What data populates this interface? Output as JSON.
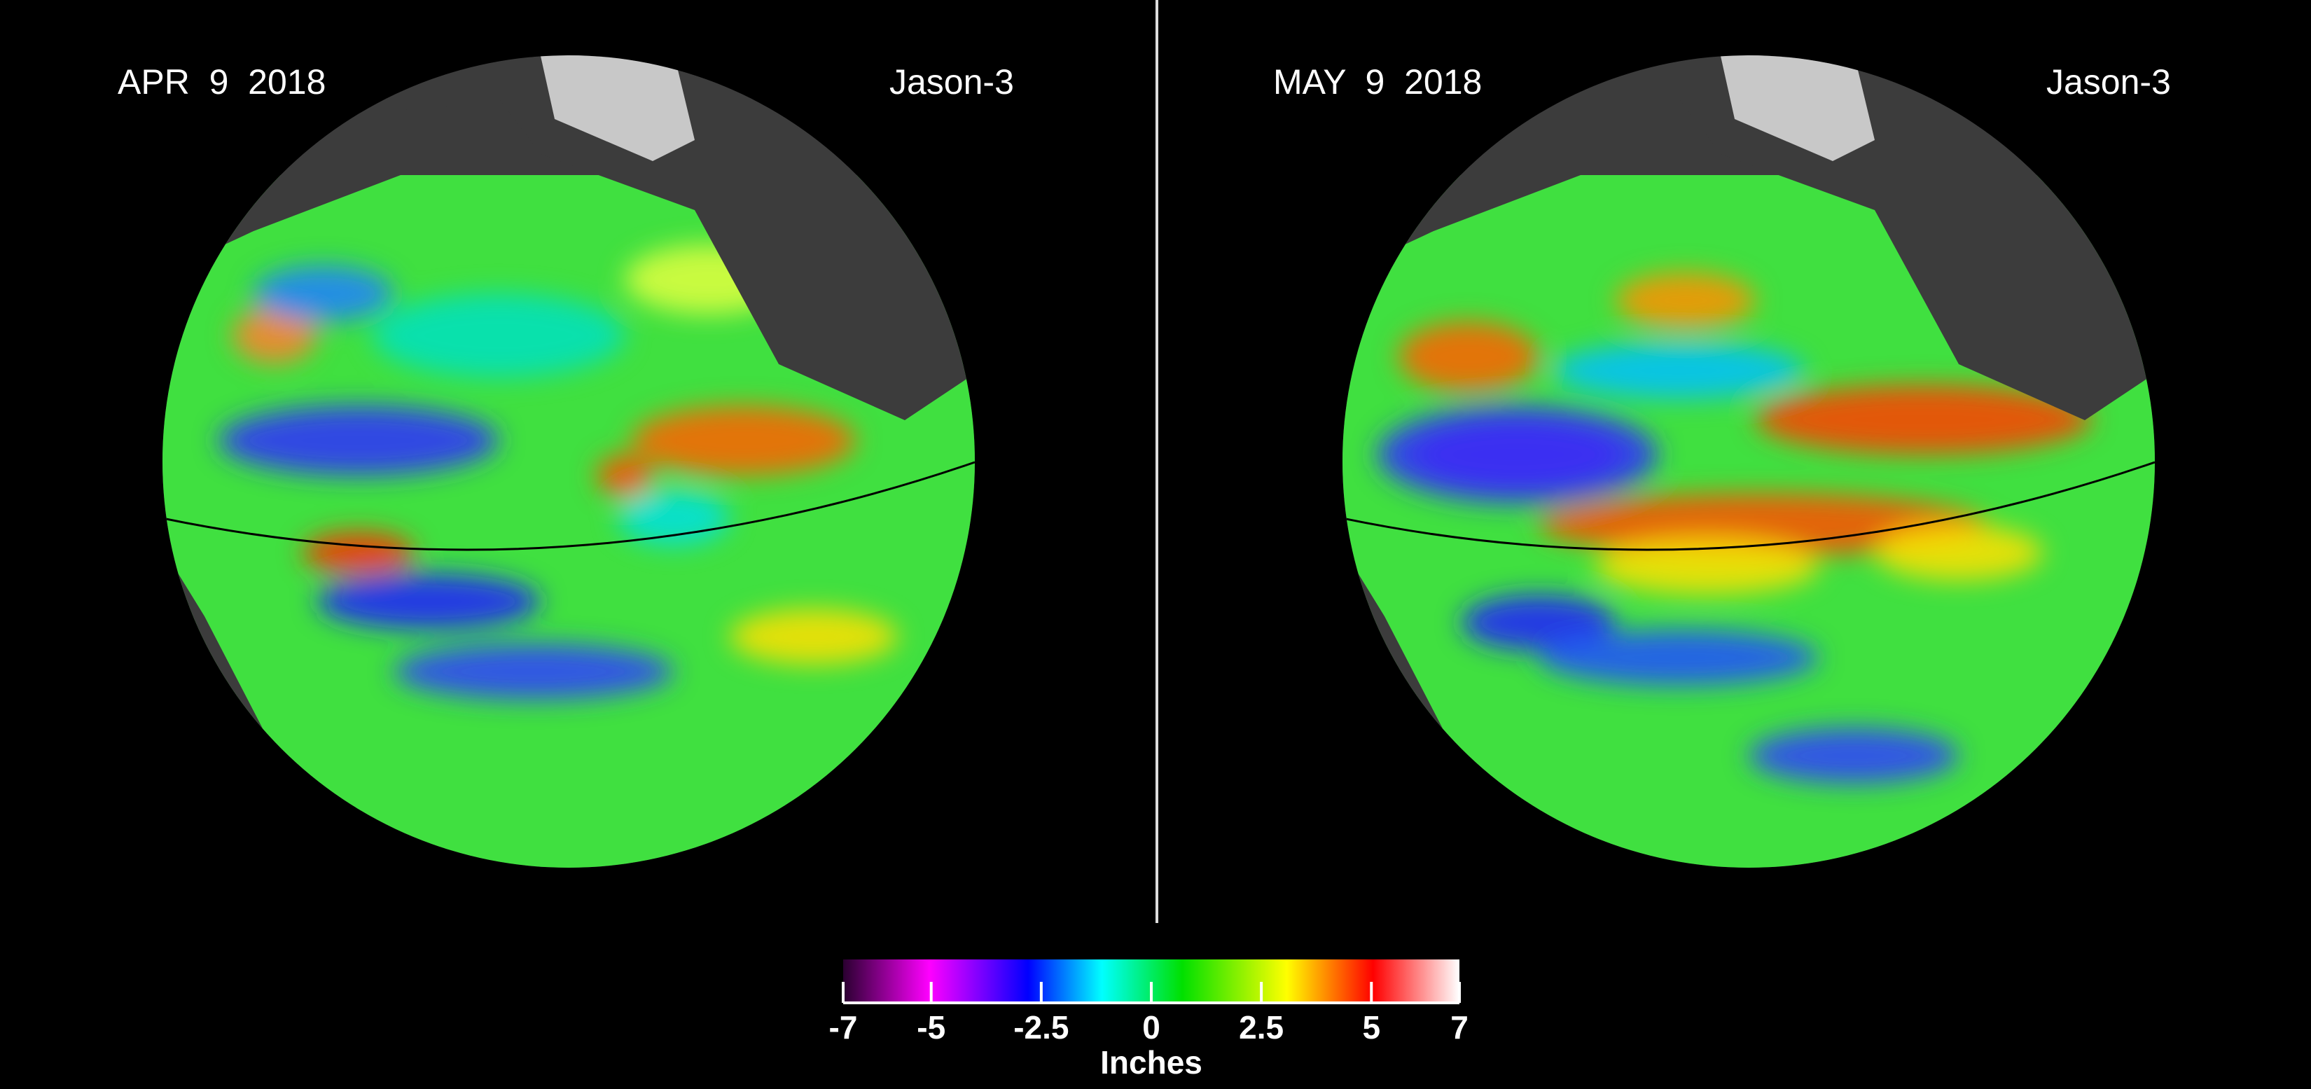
{
  "panels": [
    {
      "date": "APR  9  2018",
      "satellite": "Jason-3"
    },
    {
      "date": "MAY  9  2018",
      "satellite": "Jason-3"
    }
  ],
  "colorbar": {
    "ticks": [
      "-7",
      "-5",
      "-2.5",
      "0",
      "2.5",
      "5",
      "7"
    ],
    "tick_values": [
      -7,
      -5,
      -2.5,
      0,
      2.5,
      5,
      7
    ],
    "range": [
      -7,
      7
    ],
    "unit": "Inches",
    "colors": [
      "#2a0030",
      "#ff00ff",
      "#0000ff",
      "#00ffff",
      "#00e000",
      "#ffff00",
      "#ff0000",
      "#ffffff"
    ]
  },
  "colors": {
    "background": "#000000",
    "land": "#3c3c3c",
    "ice": "#c8c8c8",
    "ocean_base": "#40e040"
  }
}
